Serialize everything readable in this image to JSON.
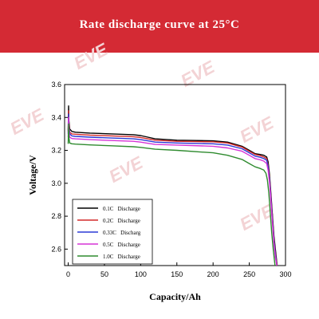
{
  "header": {
    "title": "Rate discharge curve at 25°C"
  },
  "watermark": {
    "text": "EVE"
  },
  "colors": {
    "header_bg": "#d42a34"
  },
  "chart_data": {
    "type": "line",
    "title": "Rate discharge curve at 25°C",
    "xlabel": "Capacity/Ah",
    "ylabel": "Voltage/V",
    "xlim": [
      -5,
      300
    ],
    "ylim": [
      2.5,
      3.6
    ],
    "xticks": [
      0,
      50,
      100,
      150,
      200,
      250,
      300
    ],
    "yticks": [
      2.6,
      2.8,
      3.0,
      3.2,
      3.4,
      3.6
    ],
    "xtick_labels": [
      "0",
      "50",
      "100",
      "150",
      "200",
      "250",
      "300"
    ],
    "ytick_labels": [
      "2.6",
      "2.8",
      "3.0",
      "3.2",
      "3.4",
      "3.6"
    ],
    "grid": false,
    "legend": "bottom-left",
    "series": [
      {
        "name": "0.1C   Discharge",
        "color": "#000000",
        "x": [
          0,
          0.5,
          1,
          2,
          5,
          10,
          30,
          60,
          90,
          100,
          110,
          120,
          150,
          200,
          220,
          240,
          250,
          258,
          265,
          270,
          274,
          276,
          278,
          280,
          282,
          284,
          286,
          288,
          289
        ],
        "y": [
          3.32,
          3.47,
          3.38,
          3.33,
          3.315,
          3.31,
          3.305,
          3.3,
          3.295,
          3.29,
          3.28,
          3.27,
          3.262,
          3.258,
          3.25,
          3.225,
          3.2,
          3.18,
          3.175,
          3.17,
          3.16,
          3.13,
          3.05,
          2.93,
          2.8,
          2.68,
          2.6,
          2.52,
          2.48
        ]
      },
      {
        "name": "0.2C   Discharge",
        "color": "#d42a2a",
        "x": [
          0,
          0.5,
          1,
          2,
          5,
          10,
          30,
          60,
          90,
          100,
          110,
          120,
          150,
          200,
          220,
          240,
          250,
          258,
          265,
          270,
          274,
          276,
          278,
          280,
          282,
          284,
          286,
          288,
          289
        ],
        "y": [
          3.31,
          3.44,
          3.36,
          3.31,
          3.3,
          3.298,
          3.293,
          3.288,
          3.283,
          3.278,
          3.27,
          3.262,
          3.255,
          3.252,
          3.245,
          3.22,
          3.195,
          3.175,
          3.168,
          3.16,
          3.15,
          3.11,
          3.03,
          2.91,
          2.78,
          2.66,
          2.58,
          2.51,
          2.48
        ]
      },
      {
        "name": "0.33C   Discharg",
        "color": "#2c3ad6",
        "x": [
          0,
          0.5,
          1,
          2,
          5,
          10,
          30,
          60,
          90,
          100,
          110,
          120,
          150,
          200,
          220,
          240,
          250,
          258,
          265,
          270,
          274,
          276,
          278,
          280,
          282,
          284,
          286,
          288,
          289
        ],
        "y": [
          3.3,
          3.42,
          3.34,
          3.3,
          3.288,
          3.285,
          3.28,
          3.275,
          3.27,
          3.265,
          3.258,
          3.25,
          3.245,
          3.24,
          3.232,
          3.21,
          3.185,
          3.165,
          3.158,
          3.15,
          3.14,
          3.1,
          3.02,
          2.9,
          2.77,
          2.65,
          2.57,
          2.5,
          2.48
        ]
      },
      {
        "name": "0.5C   Discharge",
        "color": "#d633d6",
        "x": [
          0,
          0.5,
          1,
          2,
          5,
          10,
          30,
          60,
          90,
          100,
          110,
          120,
          150,
          200,
          220,
          240,
          250,
          258,
          265,
          270,
          274,
          276,
          278,
          280,
          282,
          284,
          286,
          288,
          289
        ],
        "y": [
          3.28,
          3.4,
          3.32,
          3.28,
          3.272,
          3.27,
          3.265,
          3.26,
          3.255,
          3.25,
          3.243,
          3.236,
          3.232,
          3.225,
          3.215,
          3.195,
          3.17,
          3.15,
          3.143,
          3.135,
          3.12,
          3.08,
          3.0,
          2.88,
          2.75,
          2.63,
          2.55,
          2.5,
          2.48
        ]
      },
      {
        "name": "1.0C   Discharge",
        "color": "#2f8b2f",
        "x": [
          0,
          0.5,
          1,
          2,
          5,
          10,
          30,
          60,
          90,
          100,
          110,
          120,
          150,
          200,
          220,
          240,
          250,
          258,
          265,
          270,
          273,
          275,
          277,
          279,
          281,
          283,
          285,
          286
        ],
        "y": [
          3.24,
          3.36,
          3.28,
          3.245,
          3.24,
          3.238,
          3.233,
          3.228,
          3.222,
          3.218,
          3.213,
          3.207,
          3.2,
          3.185,
          3.17,
          3.145,
          3.12,
          3.1,
          3.09,
          3.08,
          3.06,
          3.02,
          2.94,
          2.82,
          2.7,
          2.6,
          2.52,
          2.48
        ]
      }
    ]
  }
}
